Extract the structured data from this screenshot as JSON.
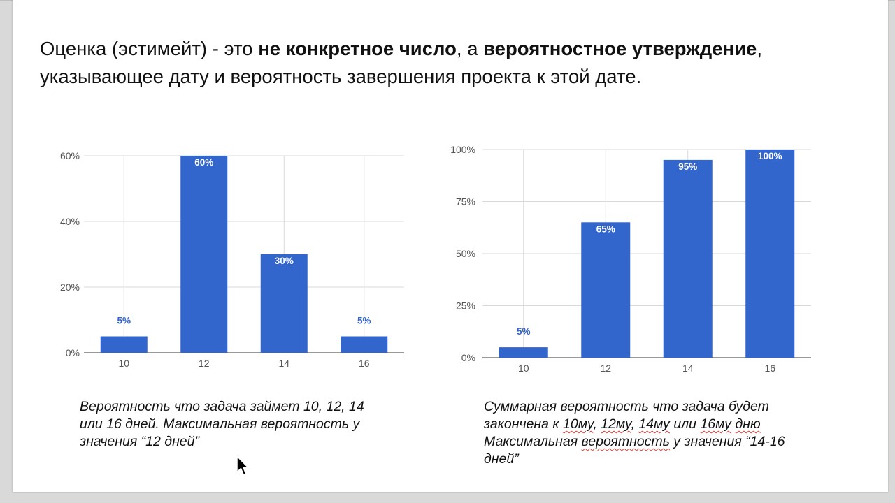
{
  "heading": {
    "part1": "Оценка (эстимейт) - это ",
    "bold1": "не конкретное число",
    "part2": ", а ",
    "bold2": "вероятностное утверждение",
    "part3": ",",
    "line2": "указывающее дату и вероятность завершения проекта к этой дате."
  },
  "chart_data": [
    {
      "type": "bar",
      "categories": [
        "10",
        "12",
        "14",
        "16"
      ],
      "values": [
        5,
        60,
        30,
        5
      ],
      "data_labels": [
        "5%",
        "60%",
        "30%",
        "5%"
      ],
      "yticks": [
        0,
        20,
        40,
        60
      ],
      "ytick_labels": [
        "0%",
        "20%",
        "40%",
        "60%"
      ],
      "ylim": [
        0,
        60
      ],
      "bar_color": "#3366cc",
      "grid": true,
      "title": "",
      "xlabel": "",
      "ylabel": ""
    },
    {
      "type": "bar",
      "categories": [
        "10",
        "12",
        "14",
        "16"
      ],
      "values": [
        5,
        65,
        95,
        100
      ],
      "data_labels": [
        "5%",
        "65%",
        "95%",
        "100%"
      ],
      "yticks": [
        0,
        25,
        50,
        75,
        100
      ],
      "ytick_labels": [
        "0%",
        "25%",
        "50%",
        "75%",
        "100%"
      ],
      "ylim": [
        0,
        100
      ],
      "bar_color": "#3366cc",
      "grid": true,
      "title": "",
      "xlabel": "",
      "ylabel": ""
    }
  ],
  "captions": {
    "left": {
      "line1": "Вероятность что задача займет 10, 12, 14",
      "line2": "или 16 дней. Максимальная вероятность у",
      "line3": "значения “12 дней”"
    },
    "right": {
      "line1": "Суммарная вероятность что задача будет",
      "line2a": "закончена к ",
      "w1": "10му",
      "sep1": ", ",
      "w2": "12му",
      "sep2": ", ",
      "w3": "14му",
      "line2b": " или ",
      "w4": "16му",
      "sep3": " ",
      "w5": "дню",
      "line3a": "Максимальная ",
      "w6": "вероятность",
      "line3b": " у значения “14-16",
      "line4": "дней”"
    }
  },
  "icons": {
    "cursor": "mouse-pointer-icon"
  }
}
